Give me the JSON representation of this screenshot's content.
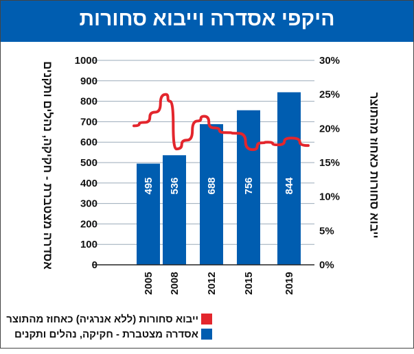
{
  "title": "היקפי אסדרה וייבוא סחורות",
  "colors": {
    "title_bg": "#005db0",
    "bar": "#005db0",
    "line": "#e3262d",
    "grid": "#9aaab8"
  },
  "chart_data": {
    "type": "bar+line",
    "title": "היקפי אסדרה וייבוא סחורות",
    "categories": [
      "2005",
      "2008",
      "2012",
      "2015",
      "2019"
    ],
    "ylabel_left": "אסדרה מצטברת - חקיקה, נהלים ותקנים",
    "ylabel_right": "ייבוא סחורות כאחוז מהתוצר",
    "ylim_left": [
      0,
      1000
    ],
    "ylim_right": [
      0,
      30
    ],
    "left_ticks": [
      "0",
      "100",
      "200",
      "300",
      "400",
      "500",
      "600",
      "700",
      "800",
      "900",
      "1000"
    ],
    "right_ticks": [
      "0%",
      "5%",
      "10%",
      "15%",
      "20%",
      "25%",
      "30%"
    ],
    "grid": true,
    "legend_position": "bottom",
    "series": [
      {
        "name": "אסדרה מצטברת - חקיקה, נהלים ותקנים",
        "type": "bar",
        "axis": "left",
        "values": [
          495,
          536,
          688,
          756,
          844
        ],
        "labels": [
          "495",
          "536",
          "688",
          "756",
          "844"
        ]
      },
      {
        "name": "ייבוא סחורות (ללא אנרגיה) כאחוז מהתוצר",
        "type": "line",
        "axis": "right",
        "x": [
          2004,
          2005,
          2006,
          2007,
          2007.4,
          2008,
          2009,
          2010,
          2010.6,
          2011.5,
          2012.6,
          2013.8,
          2015.2,
          2016,
          2016.6,
          2017.5,
          2018.8,
          2020.4
        ],
        "values": [
          20.4,
          20.9,
          22.4,
          25.0,
          24.0,
          17.0,
          18.3,
          21.1,
          21.8,
          20.1,
          19.4,
          19.3,
          16.9,
          17.9,
          18.0,
          17.6,
          18.6,
          17.5
        ]
      }
    ]
  },
  "legend": [
    {
      "label": "ייבוא סחורות  (ללא אנרגיה) כאחוז מהתוצר",
      "color": "#e3262d"
    },
    {
      "label": "אסדרה מצטברת - חקיקה, נהלים ותקנים",
      "color": "#005db0"
    }
  ]
}
